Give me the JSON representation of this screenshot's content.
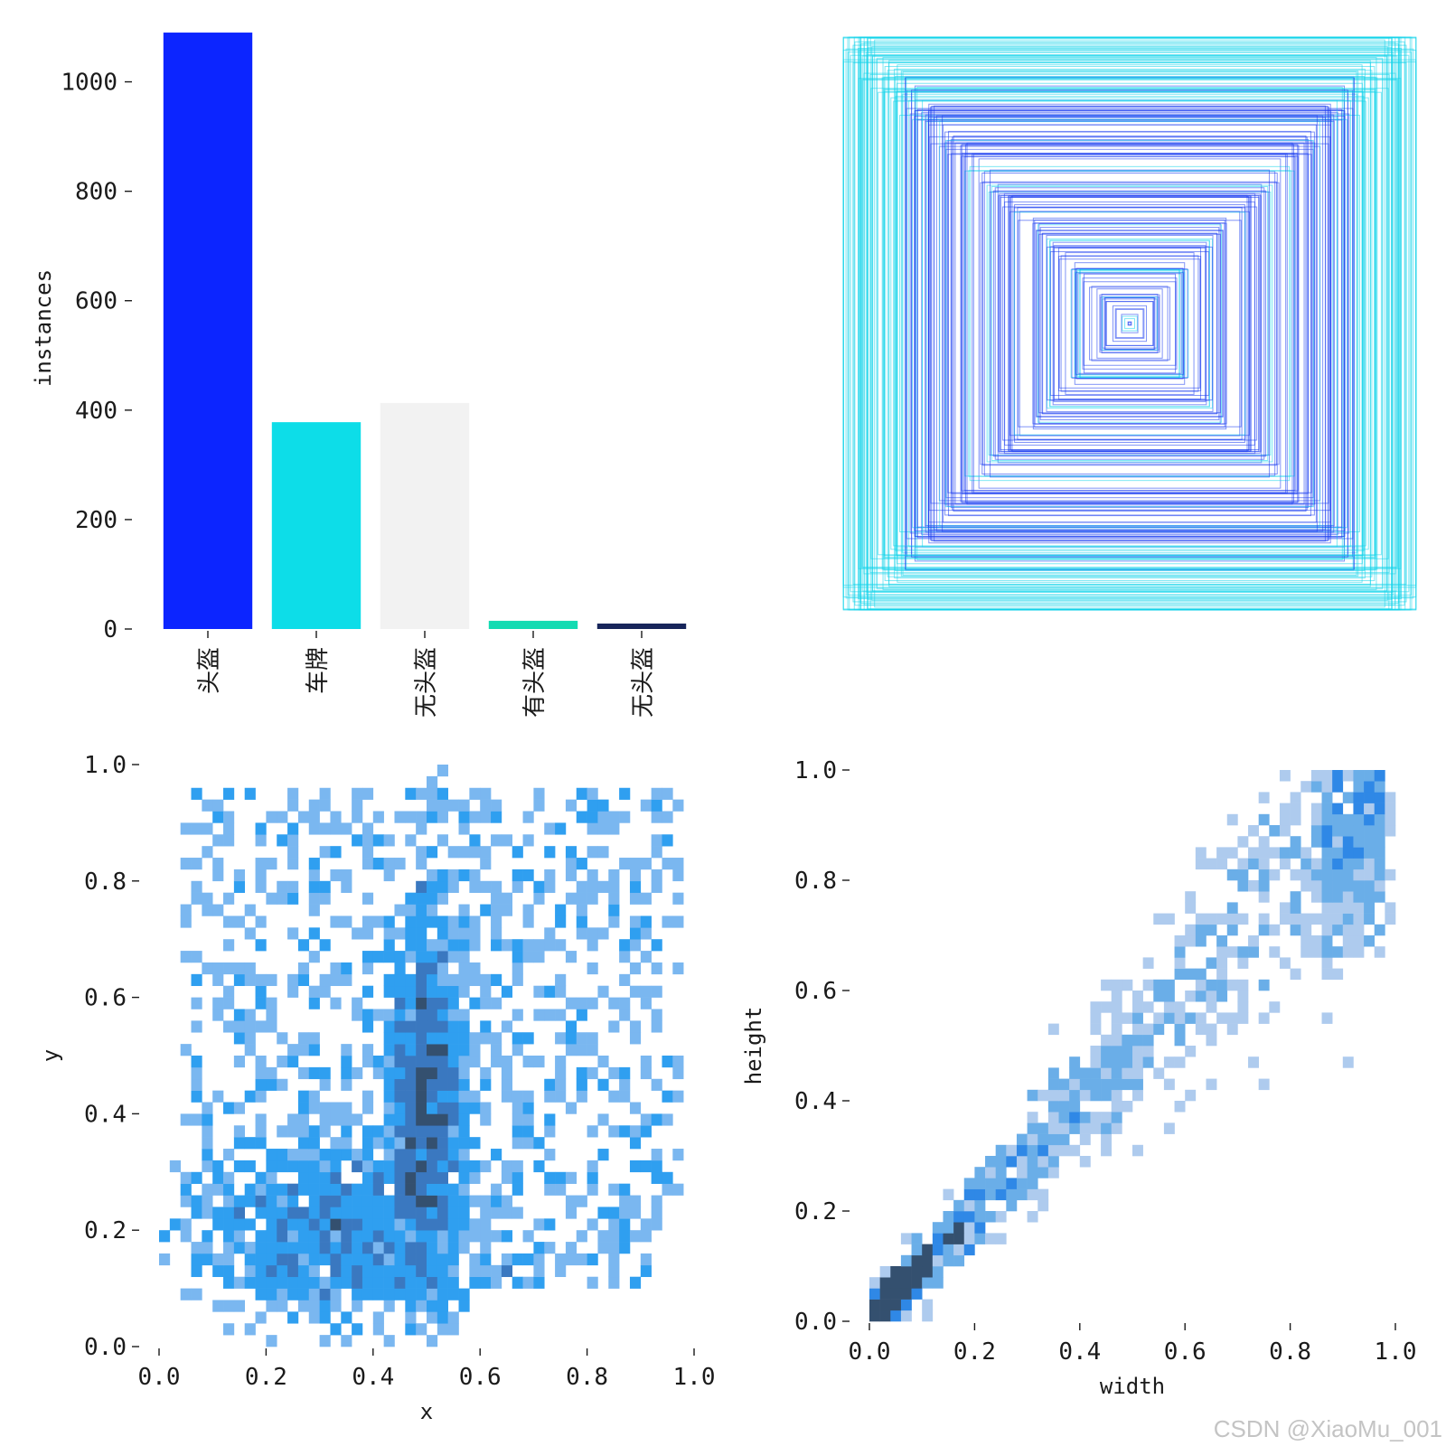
{
  "chart_data": [
    {
      "type": "bar",
      "ylabel": "instances",
      "ylim": [
        0,
        1100
      ],
      "yticks": [
        0,
        200,
        400,
        600,
        800,
        1000
      ],
      "categories": [
        "头盔",
        "车牌",
        "无头盔",
        "有头盔",
        "无头盔"
      ],
      "values": [
        1090,
        378,
        413,
        15,
        10
      ],
      "colors": [
        "#0c25ff",
        "#0ddde8",
        "#f2f2f2",
        "#13dbb2",
        "#17255a"
      ]
    },
    {
      "type": "other",
      "description_free": true,
      "xlim": [
        0,
        1
      ],
      "ylim": [
        0,
        1
      ],
      "box_colors": [
        "#1a3df0",
        "#14d3ea"
      ]
    },
    {
      "type": "heatmap",
      "xlabel": "x",
      "ylabel": "y",
      "xlim": [
        0,
        1
      ],
      "ylim": [
        0,
        1
      ],
      "xticks": [
        "0.0",
        "0.2",
        "0.4",
        "0.6",
        "0.8",
        "1.0"
      ],
      "yticks": [
        "0.0",
        "0.2",
        "0.4",
        "0.6",
        "0.8",
        "1.0"
      ],
      "bins": 50,
      "colors": [
        "#7ab7f0",
        "#2f9ff0",
        "#3a78c0",
        "#34506f"
      ]
    },
    {
      "type": "heatmap",
      "xlabel": "width",
      "ylabel": "height",
      "xlim": [
        0,
        1
      ],
      "ylim": [
        0,
        1
      ],
      "xticks": [
        "0.0",
        "0.2",
        "0.4",
        "0.6",
        "0.8",
        "1.0"
      ],
      "yticks": [
        "0.0",
        "0.2",
        "0.4",
        "0.6",
        "0.8",
        "1.0"
      ],
      "bins": 50,
      "colors": [
        "#aecbee",
        "#6aaee8",
        "#2f88e6",
        "#34506f"
      ]
    }
  ],
  "watermark": "CSDN @XiaoMu_001"
}
